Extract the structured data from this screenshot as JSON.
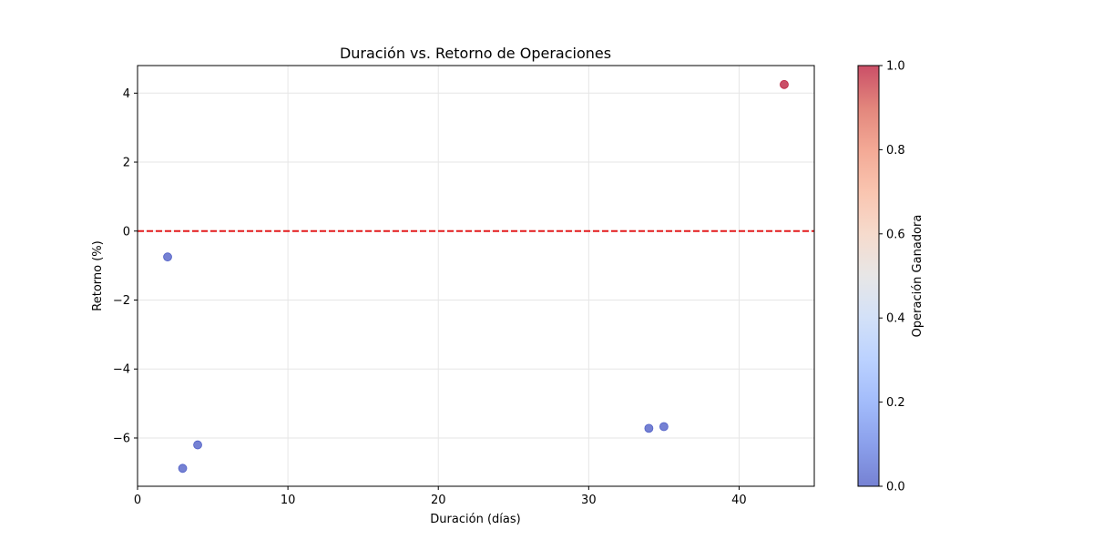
{
  "chart_data": {
    "type": "scatter",
    "title": "Duración vs. Retorno de Operaciones",
    "xlabel": "Duración (días)",
    "ylabel": "Retorno (%)",
    "xlim": [
      0,
      45
    ],
    "ylim": [
      -7.4,
      4.8
    ],
    "xticks": [
      0,
      10,
      20,
      30,
      40
    ],
    "xtick_labels": [
      "0",
      "10",
      "20",
      "30",
      "40"
    ],
    "yticks": [
      4,
      2,
      0,
      -2,
      -4,
      -6
    ],
    "ytick_labels": [
      "4",
      "2",
      "0",
      "−2",
      "−4",
      "−6"
    ],
    "grid": true,
    "reference_line": {
      "y": 0,
      "color": "#e31a1c",
      "style": "dashed"
    },
    "points": [
      {
        "x": 2,
        "y": -0.75,
        "winner": 0
      },
      {
        "x": 3,
        "y": -6.88,
        "winner": 0
      },
      {
        "x": 4,
        "y": -6.2,
        "winner": 0
      },
      {
        "x": 34,
        "y": -5.72,
        "winner": 0
      },
      {
        "x": 35,
        "y": -5.67,
        "winner": 0
      },
      {
        "x": 43,
        "y": 4.25,
        "winner": 1
      }
    ],
    "colormap": "coolwarm",
    "colors": {
      "low": "#3b4cc0",
      "high": "#b40426"
    },
    "colorbar": {
      "label": "Operación Ganadora",
      "range": [
        0,
        1
      ],
      "ticks": [
        0.0,
        0.2,
        0.4,
        0.6,
        0.8,
        1.0
      ],
      "tick_labels": [
        "0.0",
        "0.2",
        "0.4",
        "0.6",
        "0.8",
        "1.0"
      ]
    }
  }
}
